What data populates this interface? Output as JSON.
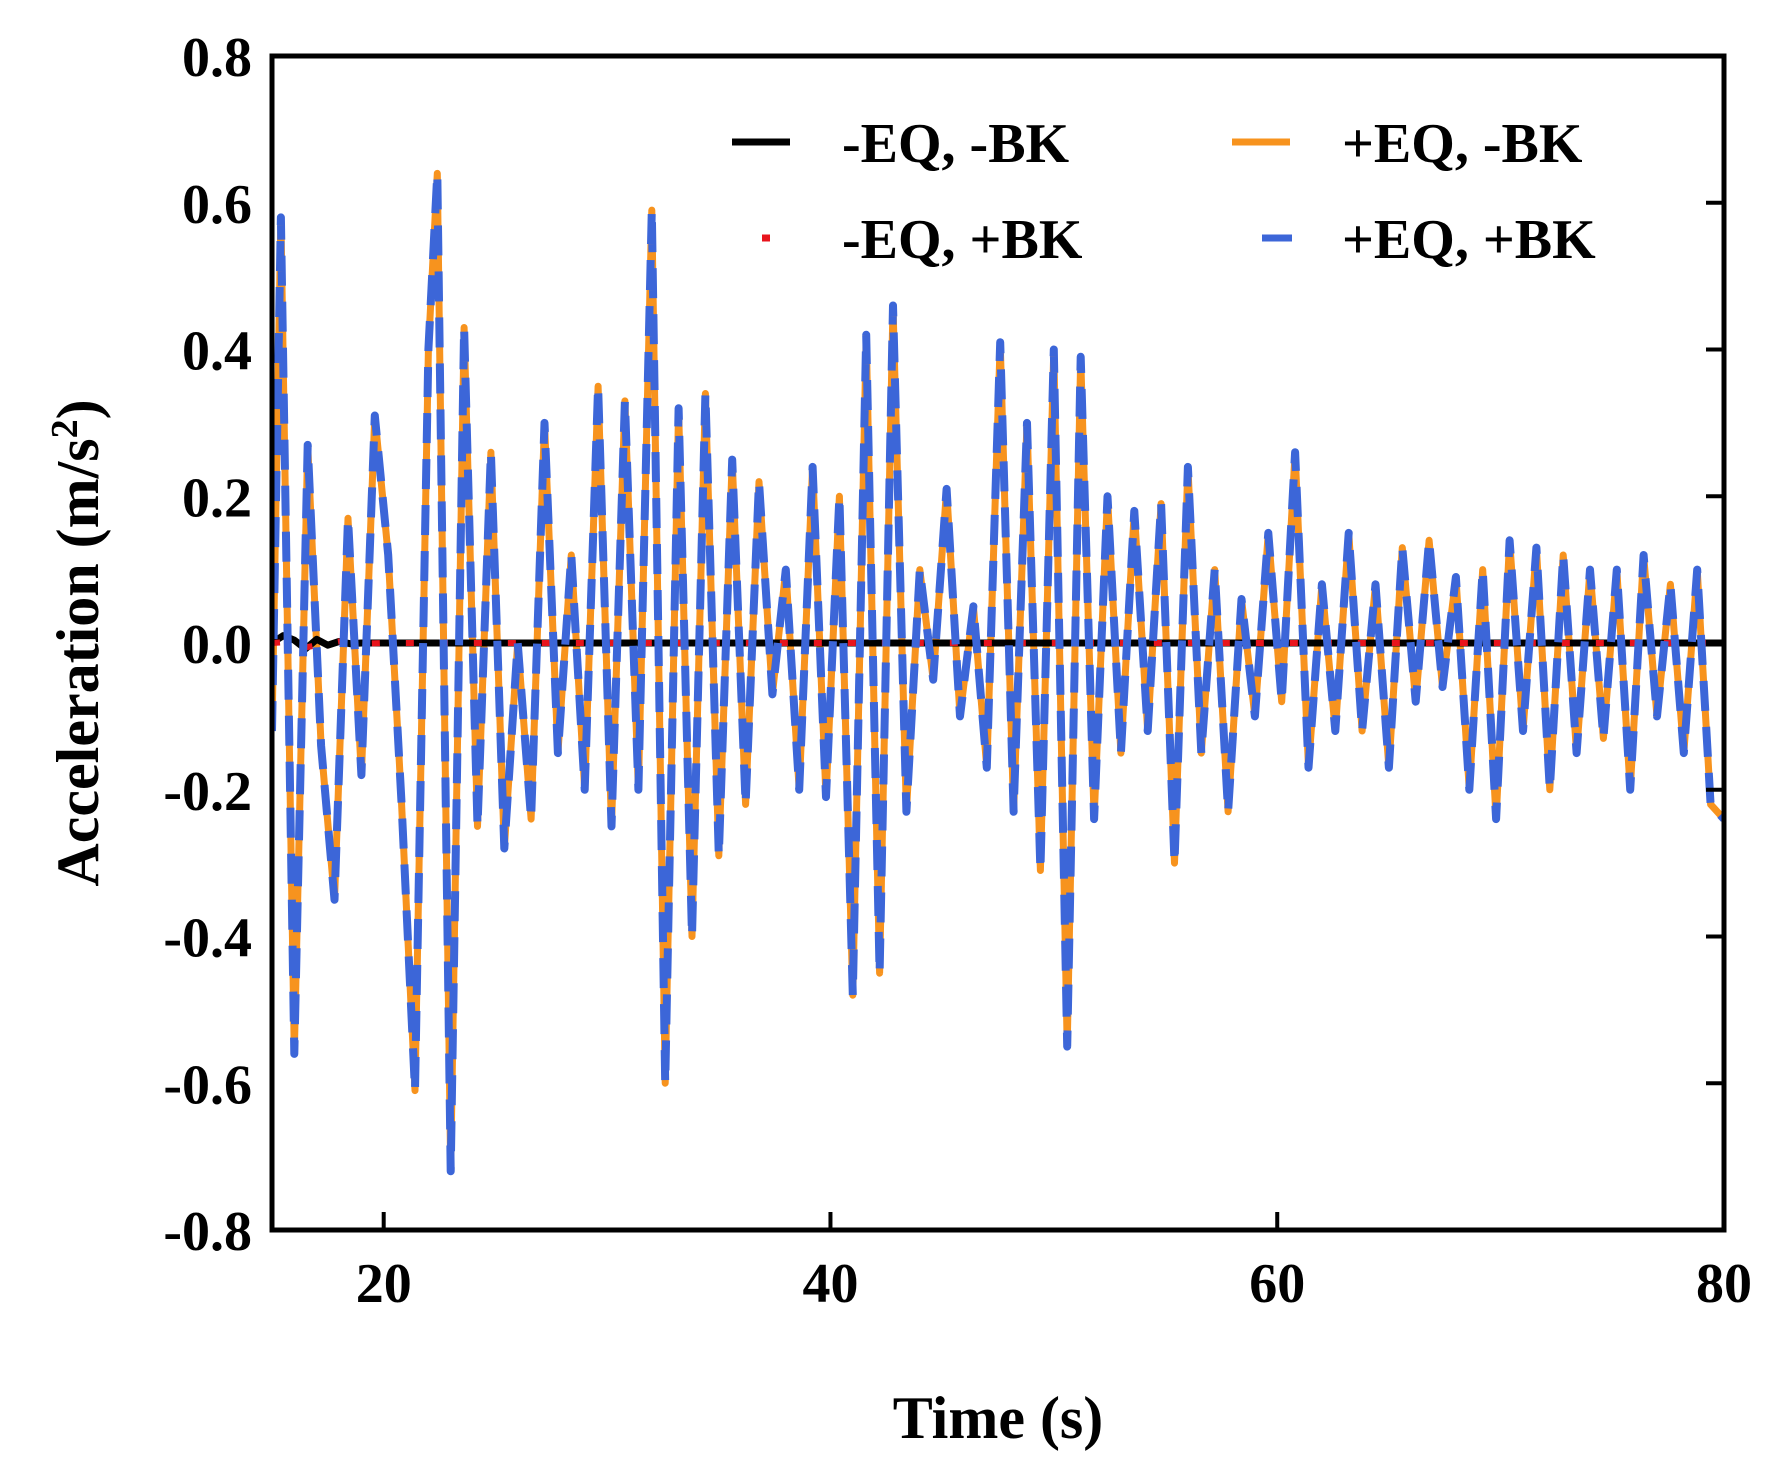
{
  "chart_data": {
    "type": "line",
    "title": "",
    "xlabel": "Time (s)",
    "ylabel_main": "Acceleration (m/s",
    "ylabel_sup": "2",
    "ylabel_close": ")",
    "xlim": [
      15,
      80
    ],
    "ylim": [
      -0.8,
      0.8
    ],
    "x_ticks": [
      20,
      40,
      60,
      80
    ],
    "x_tick_labels": [
      "20",
      "40",
      "60",
      "80"
    ],
    "y_ticks": [
      0.8,
      0.6,
      0.4,
      0.2,
      0.0,
      -0.2,
      -0.4,
      -0.6,
      -0.8
    ],
    "y_tick_labels": [
      "0.8",
      "0.6",
      "0.4",
      "0.2",
      "0.0",
      "-0.2",
      "-0.4",
      "-0.6",
      "-0.8"
    ],
    "grid": false,
    "legend_position": "top-right",
    "series": [
      {
        "name": "-EQ, -BK",
        "color": "#000000",
        "style": "solid",
        "x": [
          15,
          15.5,
          16,
          16.5,
          17,
          17.5,
          18,
          18.5,
          19,
          20,
          80
        ],
        "y": [
          0,
          0.01,
          0.004,
          -0.008,
          0.005,
          -0.003,
          0.002,
          -0.001,
          0.0,
          0.0,
          0.0
        ]
      },
      {
        "name": "-EQ, +BK",
        "color": "#e8141c",
        "style": "dotted",
        "x": [
          15,
          16,
          16.5,
          17,
          18,
          19,
          20,
          30,
          40,
          50,
          60,
          70,
          80
        ],
        "y": [
          0,
          0.002,
          -0.006,
          -0.003,
          0.002,
          -0.001,
          0.0,
          0.0,
          0.0,
          0.0,
          0.0,
          0.0,
          0.0
        ]
      },
      {
        "name": "+EQ, -BK",
        "color": "#f7931e",
        "style": "solid",
        "x": [
          15,
          15.4,
          16.0,
          16.6,
          17.2,
          17.8,
          18.4,
          19.0,
          19.6,
          20.2,
          20.8,
          21.4,
          22.0,
          22.4,
          23.0,
          23.6,
          24.2,
          24.8,
          25.4,
          26.0,
          26.6,
          27.2,
          27.8,
          28.4,
          29.0,
          29.6,
          30.2,
          30.8,
          31.4,
          32.0,
          32.6,
          33.2,
          33.8,
          34.4,
          35.0,
          35.6,
          36.2,
          36.8,
          37.4,
          38.0,
          38.6,
          39.2,
          39.8,
          40.4,
          41.0,
          41.6,
          42.2,
          42.8,
          43.4,
          44.0,
          44.6,
          45.2,
          45.8,
          46.4,
          47.0,
          47.6,
          48.2,
          48.8,
          49.4,
          50.0,
          50.6,
          51.2,
          51.8,
          52.4,
          53.0,
          53.6,
          54.2,
          54.8,
          55.4,
          56.0,
          56.6,
          57.2,
          57.8,
          58.4,
          59.0,
          59.6,
          60.2,
          60.8,
          61.4,
          62.0,
          62.6,
          63.2,
          63.8,
          64.4,
          65.0,
          65.6,
          66.2,
          66.8,
          67.4,
          68.0,
          68.6,
          69.2,
          69.8,
          70.4,
          71.0,
          71.6,
          72.2,
          72.8,
          73.4,
          74.0,
          74.6,
          75.2,
          75.8,
          76.4,
          77.0,
          77.6,
          78.2,
          78.8,
          79.4,
          80.0
        ],
        "y": [
          -0.12,
          0.58,
          -0.56,
          0.27,
          -0.14,
          -0.35,
          0.17,
          -0.18,
          0.31,
          0.12,
          -0.22,
          -0.61,
          0.4,
          0.64,
          -0.72,
          0.43,
          -0.25,
          0.26,
          -0.28,
          0.0,
          -0.24,
          0.3,
          -0.15,
          0.12,
          -0.2,
          0.35,
          -0.25,
          0.33,
          -0.2,
          0.59,
          -0.6,
          0.32,
          -0.4,
          0.34,
          -0.29,
          0.25,
          -0.22,
          0.22,
          -0.07,
          0.1,
          -0.2,
          0.24,
          -0.21,
          0.2,
          -0.48,
          0.42,
          -0.45,
          0.46,
          -0.23,
          0.1,
          -0.05,
          0.21,
          -0.1,
          0.05,
          -0.17,
          0.41,
          -0.23,
          0.3,
          -0.31,
          0.4,
          -0.55,
          0.39,
          -0.24,
          0.2,
          -0.15,
          0.18,
          -0.12,
          0.19,
          -0.3,
          0.24,
          -0.15,
          0.1,
          -0.23,
          0.06,
          -0.1,
          0.15,
          -0.08,
          0.26,
          -0.17,
          0.08,
          -0.12,
          0.15,
          -0.12,
          0.08,
          -0.17,
          0.13,
          -0.08,
          0.14,
          -0.06,
          0.09,
          -0.2,
          0.1,
          -0.24,
          0.14,
          -0.12,
          0.13,
          -0.2,
          0.12,
          -0.15,
          0.1,
          -0.13,
          0.1,
          -0.2,
          0.12,
          -0.1,
          0.08,
          -0.15,
          0.1,
          -0.22,
          -0.24
        ]
      },
      {
        "name": "+EQ, +BK",
        "color": "#3c66d8",
        "style": "dashed",
        "x": [
          15,
          15.4,
          16.0,
          16.6,
          17.2,
          17.8,
          18.4,
          19.0,
          19.6,
          20.2,
          20.8,
          21.4,
          22.0,
          22.4,
          23.0,
          23.6,
          24.2,
          24.8,
          25.4,
          26.0,
          26.6,
          27.2,
          27.8,
          28.4,
          29.0,
          29.6,
          30.2,
          30.8,
          31.4,
          32.0,
          32.6,
          33.2,
          33.8,
          34.4,
          35.0,
          35.6,
          36.2,
          36.8,
          37.4,
          38.0,
          38.6,
          39.2,
          39.8,
          40.4,
          41.0,
          41.6,
          42.2,
          42.8,
          43.4,
          44.0,
          44.6,
          45.2,
          45.8,
          46.4,
          47.0,
          47.6,
          48.2,
          48.8,
          49.4,
          50.0,
          50.6,
          51.2,
          51.8,
          52.4,
          53.0,
          53.6,
          54.2,
          54.8,
          55.4,
          56.0,
          56.6,
          57.2,
          57.8,
          58.4,
          59.0,
          59.6,
          60.2,
          60.8,
          61.4,
          62.0,
          62.6,
          63.2,
          63.8,
          64.4,
          65.0,
          65.6,
          66.2,
          66.8,
          67.4,
          68.0,
          68.6,
          69.2,
          69.8,
          70.4,
          71.0,
          71.6,
          72.2,
          72.8,
          73.4,
          74.0,
          74.6,
          75.2,
          75.8,
          76.4,
          77.0,
          77.6,
          78.2,
          78.8,
          79.4,
          80.0
        ],
        "y": [
          -0.12,
          0.58,
          -0.56,
          0.27,
          -0.14,
          -0.35,
          0.17,
          -0.18,
          0.31,
          0.12,
          -0.22,
          -0.61,
          0.4,
          0.64,
          -0.72,
          0.43,
          -0.25,
          0.26,
          -0.28,
          0.0,
          -0.24,
          0.3,
          -0.15,
          0.12,
          -0.2,
          0.35,
          -0.25,
          0.33,
          -0.2,
          0.59,
          -0.6,
          0.32,
          -0.4,
          0.34,
          -0.29,
          0.25,
          -0.22,
          0.22,
          -0.07,
          0.1,
          -0.2,
          0.24,
          -0.21,
          0.2,
          -0.48,
          0.42,
          -0.45,
          0.46,
          -0.23,
          0.1,
          -0.05,
          0.21,
          -0.1,
          0.05,
          -0.17,
          0.41,
          -0.23,
          0.3,
          -0.31,
          0.4,
          -0.55,
          0.39,
          -0.24,
          0.2,
          -0.15,
          0.18,
          -0.12,
          0.19,
          -0.3,
          0.24,
          -0.15,
          0.1,
          -0.23,
          0.06,
          -0.1,
          0.15,
          -0.08,
          0.26,
          -0.17,
          0.08,
          -0.12,
          0.15,
          -0.12,
          0.08,
          -0.17,
          0.13,
          -0.08,
          0.14,
          -0.06,
          0.09,
          -0.2,
          0.1,
          -0.24,
          0.14,
          -0.12,
          0.13,
          -0.2,
          0.12,
          -0.15,
          0.1,
          -0.13,
          0.1,
          -0.2,
          0.12,
          -0.1,
          0.08,
          -0.15,
          0.1,
          -0.22,
          -0.24
        ]
      }
    ]
  }
}
